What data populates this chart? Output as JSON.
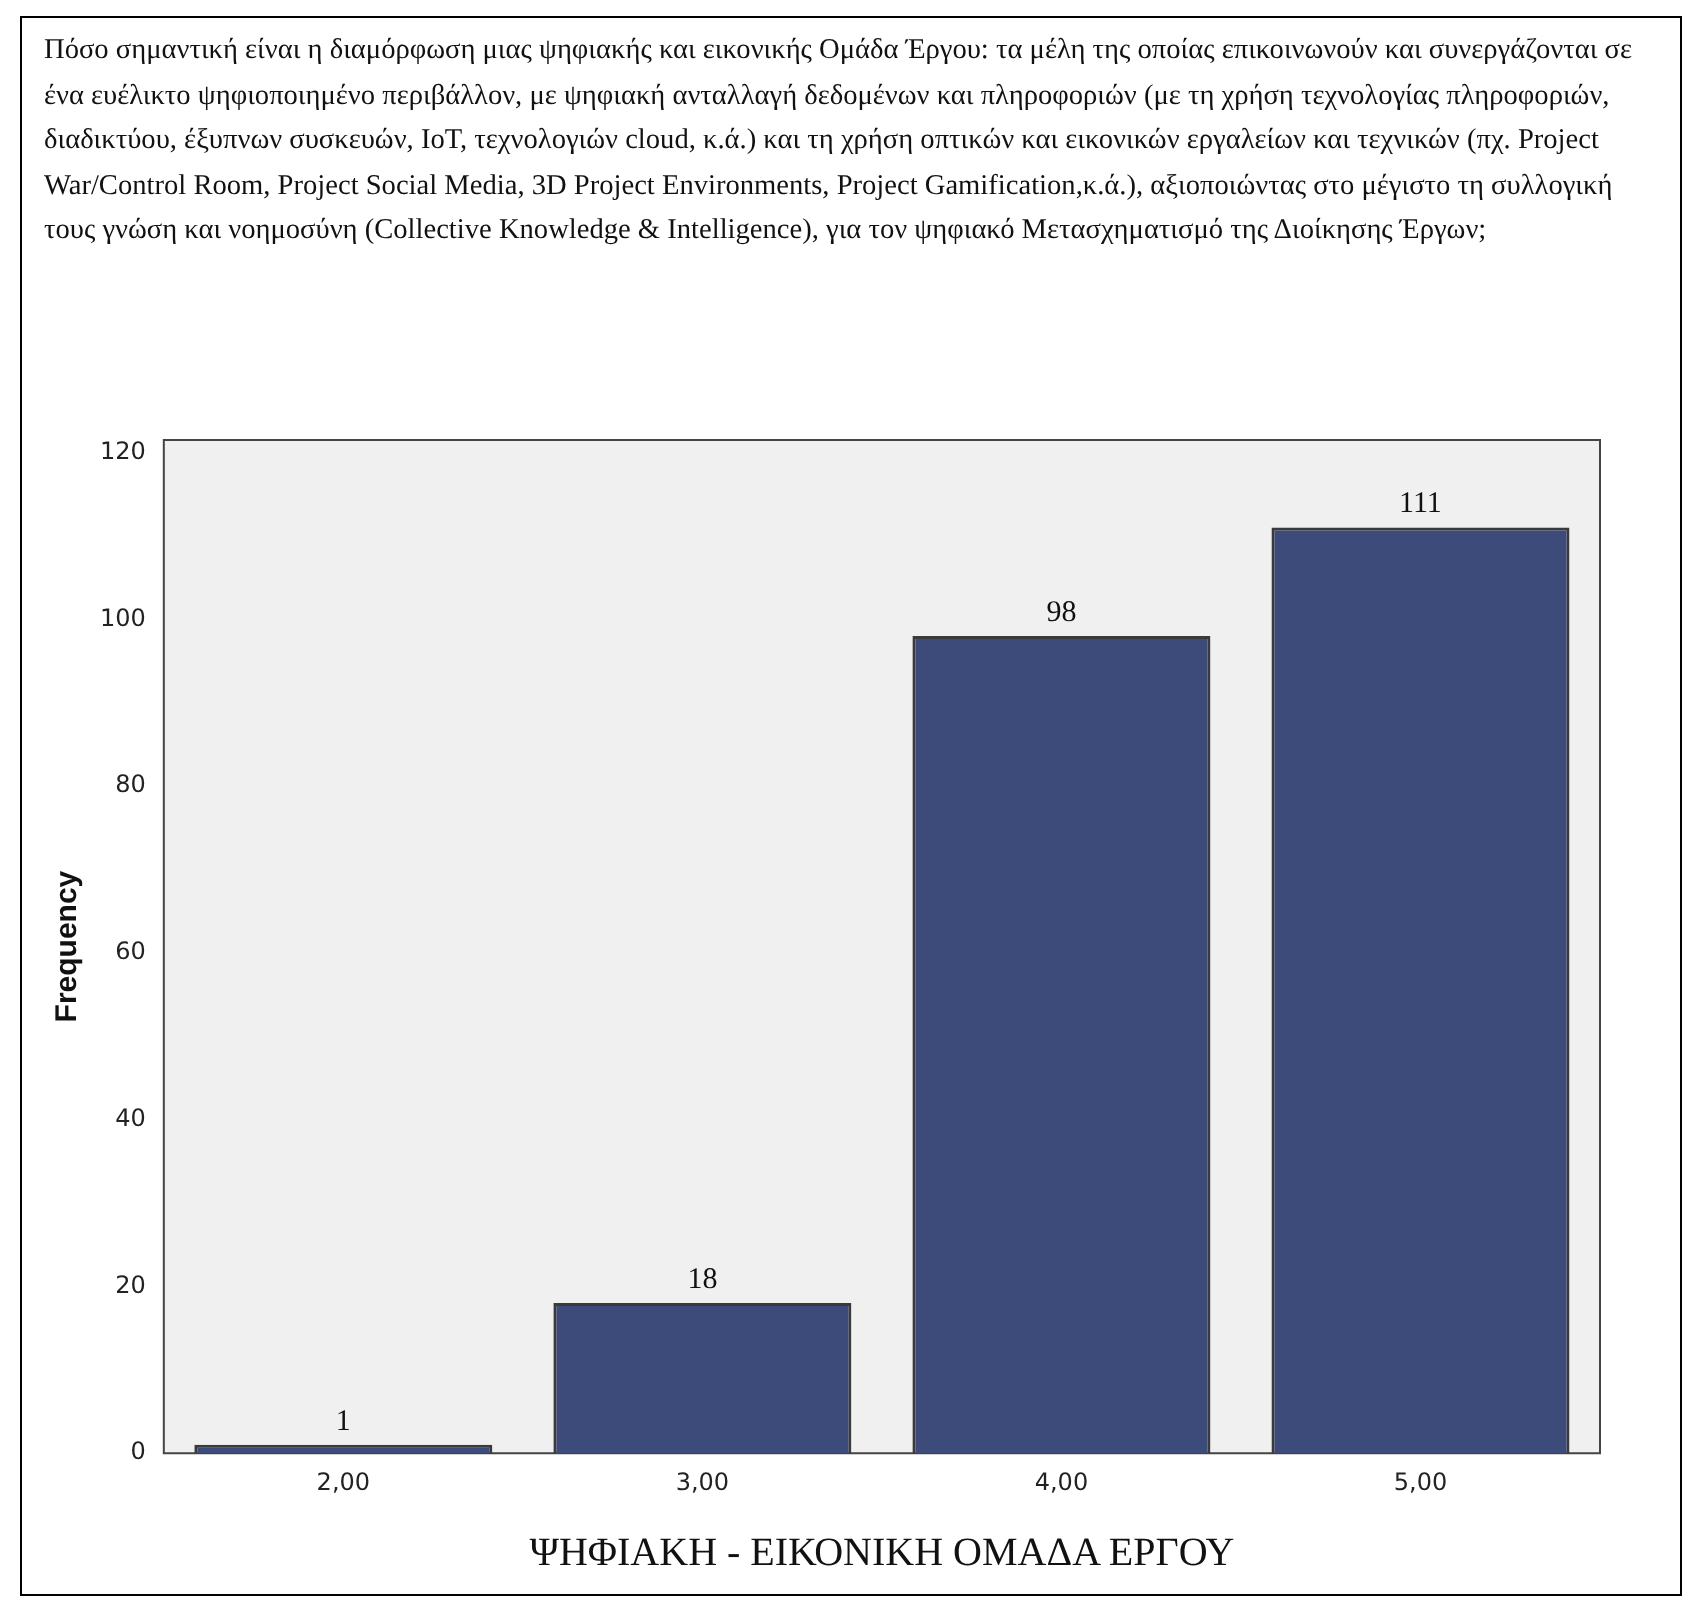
{
  "chart_data": {
    "type": "bar",
    "title": "Πόσο σημαντική είναι η διαμόρφωση μιας ψηφιακής και εικονικής Ομάδα Έργου: τα μέλη της οποίας επικοινωνούν και συνεργάζονται σε ένα ευέλικτο ψηφιοποιημένο περιβάλλον, με ψηφιακή ανταλλαγή δεδομένων και πληροφοριών (με τη χρήση τεχνολογίας πληροφοριών, διαδικτύου, έξυπνων συσκευών, IoT, τεχνολογιών cloud, κ.ά.) και τη χρήση οπτικών και εικονικών εργαλείων και τεχνικών (πχ. Project War/Control Room, Project Social Media, 3D Project Environments, Project Gamification,κ.ά.), αξιοποιώντας στο μέγιστο τη συλλογική τους γνώση και νοημοσύνη (Collective Knowledge & Intelligence), για τον ψηφιακό Μετασχηματισμό της Διοίκησης Έργων;",
    "xlabel": "ΨΗΦΙΑΚΗ - ΕΙΚΟΝΙΚΗ ΟΜΑΔΑ ΕΡΓΟΥ",
    "ylabel": "Frequency",
    "categories": [
      "2,00",
      "3,00",
      "4,00",
      "5,00"
    ],
    "values": [
      1,
      18,
      98,
      111
    ],
    "color": "#3d4b7b",
    "ylim": [
      0,
      121.5
    ],
    "yticks": [
      0,
      20,
      40,
      60,
      80,
      100,
      120
    ],
    "grid": false,
    "data_labels": true
  }
}
